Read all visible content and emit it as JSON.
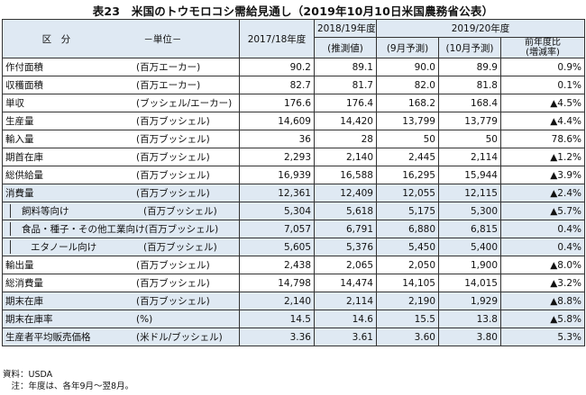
{
  "title": "表23　米国のトウモロコシ需給見通し（2019年10月10日米国農務省公表）",
  "header": {
    "kubun": "区　分",
    "unit": "－単位－",
    "y2017": "2017/18年度",
    "y2018": "2018/19年度",
    "y2018_sub": "(推測値)",
    "y2019": "2019/20年度",
    "y2019_sep": "(9月予測)",
    "y2019_oct": "(10月予測)",
    "change": "前年度比\n(増減率)"
  },
  "rows": [
    {
      "label": "作付面積",
      "unit": "(百万エーカー)",
      "v1": "90.2",
      "v2": "89.1",
      "v3": "90.0",
      "v4": "89.9",
      "chg": "0.9%"
    },
    {
      "label": "収穫面積",
      "unit": "(百万エーカー)",
      "v1": "82.7",
      "v2": "81.7",
      "v3": "82.0",
      "v4": "81.8",
      "chg": "0.1%"
    },
    {
      "label": "単収",
      "unit": "(ブッシェル/エーカー)",
      "v1": "176.6",
      "v2": "176.4",
      "v3": "168.2",
      "v4": "168.4",
      "chg": "▲4.5%"
    },
    {
      "label": "生産量",
      "unit": "(百万ブッシェル)",
      "v1": "14,609",
      "v2": "14,420",
      "v3": "13,799",
      "v4": "13,779",
      "chg": "▲4.4%"
    },
    {
      "label": "輸入量",
      "unit": "(百万ブッシェル)",
      "v1": "36",
      "v2": "28",
      "v3": "50",
      "v4": "50",
      "chg": "78.6%"
    },
    {
      "label": "期首在庫",
      "unit": "(百万ブッシェル)",
      "v1": "2,293",
      "v2": "2,140",
      "v3": "2,445",
      "v4": "2,114",
      "chg": "▲1.2%"
    },
    {
      "label": "総供給量",
      "unit": "(百万ブッシェル)",
      "v1": "16,939",
      "v2": "16,588",
      "v3": "16,295",
      "v4": "15,944",
      "chg": "▲3.9%"
    },
    {
      "label": "消費量",
      "unit": "(百万ブッシェル)",
      "v1": "12,361",
      "v2": "12,409",
      "v3": "12,055",
      "v4": "12,115",
      "chg": "▲2.4%"
    },
    {
      "label": "飼料等向け",
      "unit": "(百万ブッシェル)",
      "v1": "5,304",
      "v2": "5,618",
      "v3": "5,175",
      "v4": "5,300",
      "chg": "▲5.7%"
    },
    {
      "label": "食品・種子・その他工業向け",
      "unit": "(百万ブッシェル)",
      "v1": "7,057",
      "v2": "6,791",
      "v3": "6,880",
      "v4": "6,815",
      "chg": "0.4%"
    },
    {
      "label": "エタノール向け",
      "unit": "(百万ブッシェル)",
      "v1": "5,605",
      "v2": "5,376",
      "v3": "5,450",
      "v4": "5,400",
      "chg": "0.4%"
    },
    {
      "label": "輸出量",
      "unit": "(百万ブッシェル)",
      "v1": "2,438",
      "v2": "2,065",
      "v3": "2,050",
      "v4": "1,900",
      "chg": "▲8.0%"
    },
    {
      "label": "総消費量",
      "unit": "(百万ブッシェル)",
      "v1": "14,798",
      "v2": "14,474",
      "v3": "14,105",
      "v4": "14,015",
      "chg": "▲3.2%"
    },
    {
      "label": "期末在庫",
      "unit": "(百万ブッシェル)",
      "v1": "2,140",
      "v2": "2,114",
      "v3": "2,190",
      "v4": "1,929",
      "chg": "▲8.8%"
    },
    {
      "label": "期末在庫率",
      "unit": "(%)",
      "v1": "14.5",
      "v2": "14.6",
      "v3": "15.5",
      "v4": "13.8",
      "chg": "▲5.8%"
    },
    {
      "label": "生産者平均販売価格",
      "unit": "(米ドル/ブッシェル)",
      "v1": "3.36",
      "v2": "3.61",
      "v3": "3.60",
      "v4": "3.80",
      "chg": "5.3%"
    }
  ],
  "notes": {
    "source": "資料：USDA",
    "note": "　注：年度は、各年9月～翌8月。"
  }
}
